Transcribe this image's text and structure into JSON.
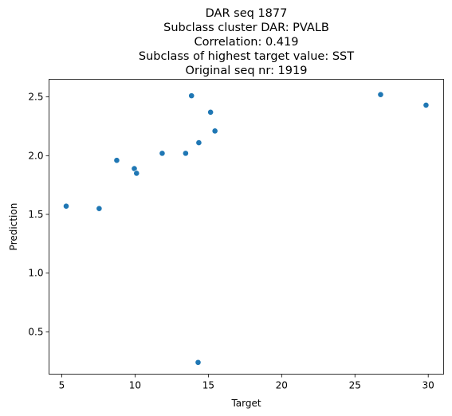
{
  "chart_data": {
    "type": "scatter",
    "title_lines": [
      "DAR seq 1877",
      "Subclass cluster DAR: PVALB",
      "Correlation: 0.419",
      "Subclass of highest target value: SST",
      "Original seq nr: 1919"
    ],
    "xlabel": "Target",
    "ylabel": "Prediction",
    "xlim": [
      4.13,
      31.05
    ],
    "ylim": [
      0.14,
      2.65
    ],
    "xticks": [
      5,
      10,
      15,
      20,
      25,
      30
    ],
    "xtick_labels": [
      "5",
      "10",
      "15",
      "20",
      "25",
      "30"
    ],
    "yticks": [
      0.5,
      1.0,
      1.5,
      2.0,
      2.5
    ],
    "ytick_labels": [
      "0.5",
      "1.0",
      "1.5",
      "2.0",
      "2.5"
    ],
    "grid": false,
    "marker_color": "#1f77b4",
    "points": [
      {
        "x": 5.3,
        "y": 1.57
      },
      {
        "x": 7.55,
        "y": 1.55
      },
      {
        "x": 8.75,
        "y": 1.96
      },
      {
        "x": 9.95,
        "y": 1.89
      },
      {
        "x": 10.1,
        "y": 1.85
      },
      {
        "x": 11.85,
        "y": 2.02
      },
      {
        "x": 13.45,
        "y": 2.02
      },
      {
        "x": 13.85,
        "y": 2.51
      },
      {
        "x": 14.3,
        "y": 0.24
      },
      {
        "x": 14.35,
        "y": 2.11
      },
      {
        "x": 15.15,
        "y": 2.37
      },
      {
        "x": 15.45,
        "y": 2.21
      },
      {
        "x": 26.75,
        "y": 2.52
      },
      {
        "x": 29.85,
        "y": 2.43
      }
    ]
  }
}
